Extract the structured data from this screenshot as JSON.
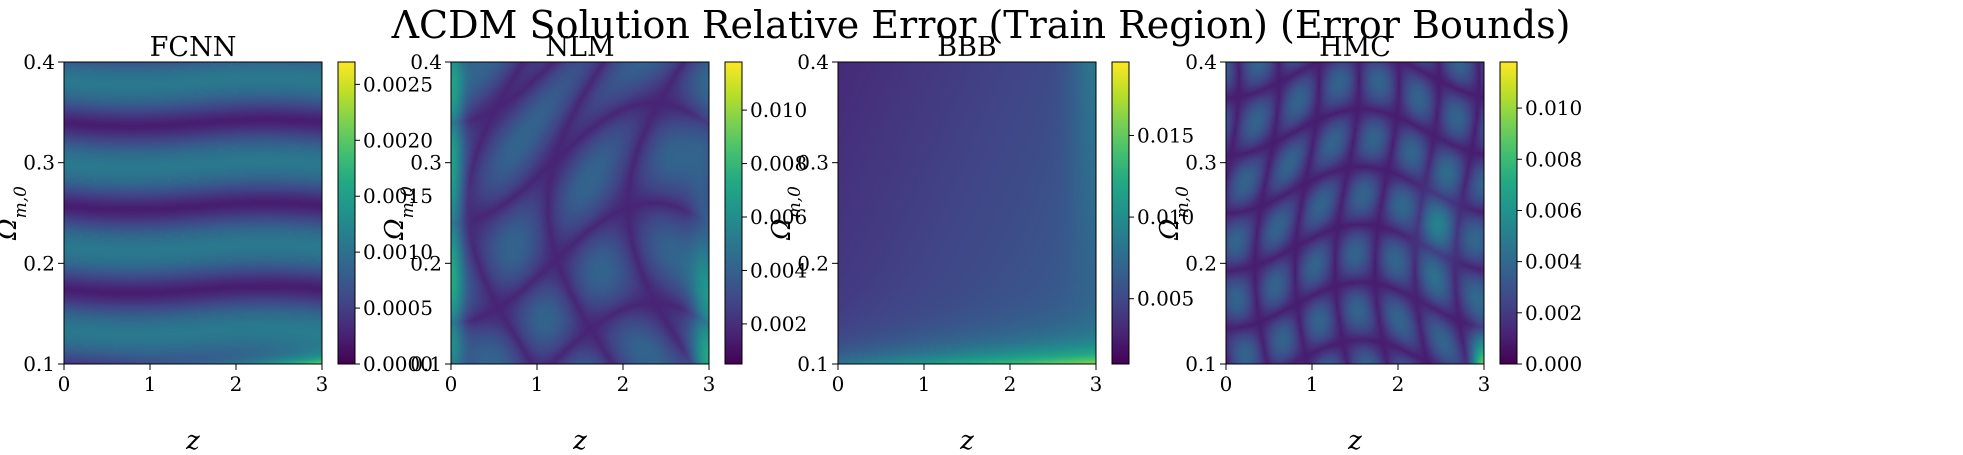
{
  "figure": {
    "title": "ΛCDM Solution Relative Error (Train Region) (Error Bounds)"
  },
  "chart_data": [
    {
      "type": "heatmap",
      "title": "FCNN",
      "xlabel": "z",
      "ylabel": "Ω",
      "ylabel_sub": "m,0",
      "xlim": [
        0,
        3
      ],
      "ylim": [
        0.1,
        0.4
      ],
      "xticks": [
        "0",
        "1",
        "2",
        "3"
      ],
      "yticks": [
        "0.1",
        "0.2",
        "0.3",
        "0.4"
      ],
      "colorbar": {
        "min": 0.0,
        "max": 0.0027,
        "ticks": [
          "0.0000",
          "0.0005",
          "0.0010",
          "0.0015",
          "0.0020",
          "0.0025"
        ],
        "tick_values": [
          0.0,
          0.0005,
          0.001,
          0.0015,
          0.002,
          0.0025
        ]
      },
      "pattern": "horizontal-bands"
    },
    {
      "type": "heatmap",
      "title": "NLM",
      "xlabel": "z",
      "ylabel": "Ω",
      "ylabel_sub": "m,0",
      "xlim": [
        0,
        3
      ],
      "ylim": [
        0.1,
        0.4
      ],
      "xticks": [
        "0",
        "1",
        "2",
        "3"
      ],
      "yticks": [
        "0.1",
        "0.2",
        "0.3",
        "0.4"
      ],
      "colorbar": {
        "min": 0.0005,
        "max": 0.0118,
        "ticks": [
          "0.002",
          "0.004",
          "0.006",
          "0.008",
          "0.010"
        ],
        "tick_values": [
          0.002,
          0.004,
          0.006,
          0.008,
          0.01
        ]
      },
      "pattern": "blobs"
    },
    {
      "type": "heatmap",
      "title": "BBB",
      "xlabel": "z",
      "ylabel": "Ω",
      "ylabel_sub": "m,0",
      "xlim": [
        0,
        3
      ],
      "ylim": [
        0.1,
        0.4
      ],
      "xticks": [
        "0",
        "1",
        "2",
        "3"
      ],
      "yticks": [
        "0.1",
        "0.2",
        "0.3",
        "0.4"
      ],
      "colorbar": {
        "min": 0.001,
        "max": 0.0195,
        "ticks": [
          "0.005",
          "0.010",
          "0.015"
        ],
        "tick_values": [
          0.005,
          0.01,
          0.015
        ]
      },
      "pattern": "smooth-bottom-high"
    },
    {
      "type": "heatmap",
      "title": "HMC",
      "xlabel": "z",
      "ylabel": "Ω",
      "ylabel_sub": "m,0",
      "xlim": [
        0,
        3
      ],
      "ylim": [
        0.1,
        0.4
      ],
      "xticks": [
        "0",
        "1",
        "2",
        "3"
      ],
      "yticks": [
        "0.1",
        "0.2",
        "0.3",
        "0.4"
      ],
      "colorbar": {
        "min": 0.0,
        "max": 0.0118,
        "ticks": [
          "0.000",
          "0.002",
          "0.004",
          "0.006",
          "0.008",
          "0.010"
        ],
        "tick_values": [
          0.0,
          0.002,
          0.004,
          0.006,
          0.008,
          0.01
        ]
      },
      "pattern": "cells"
    }
  ]
}
